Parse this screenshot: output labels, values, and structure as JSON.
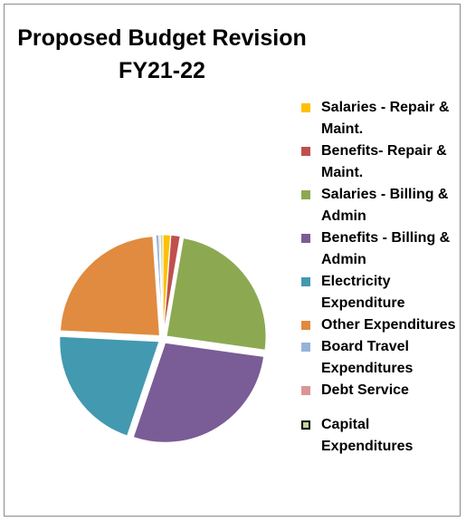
{
  "chart_data": {
    "type": "pie",
    "title": "Proposed Budget Revision FY21-22",
    "title_lines": [
      "Proposed Budget Revision",
      "FY21-22"
    ],
    "legend_position": "right",
    "slices": [
      {
        "label": "Salaries - Repair & Maint.",
        "value": 1.2,
        "color": "#FFC000"
      },
      {
        "label": "Benefits- Repair & Maint.",
        "value": 1.5,
        "color": "#C0504D"
      },
      {
        "label": "Salaries - Billing & Admin",
        "value": 24.5,
        "color": "#8CA952"
      },
      {
        "label": "Benefits - Billing & Admin",
        "value": 28.0,
        "color": "#7A5C96"
      },
      {
        "label": "Electricity Expenditure",
        "value": 20.6,
        "color": "#4299B0"
      },
      {
        "label": "Other Expenditures",
        "value": 23.1,
        "color": "#E08B3F"
      },
      {
        "label": "Board Travel Expenditures",
        "value": 0.5,
        "color": "#95B3D7"
      },
      {
        "label": "Debt Service",
        "value": 0.2,
        "color": "#D99694"
      },
      {
        "label": "Capital Expenditures",
        "value": 0.4,
        "color": "#C3D69B"
      }
    ]
  }
}
